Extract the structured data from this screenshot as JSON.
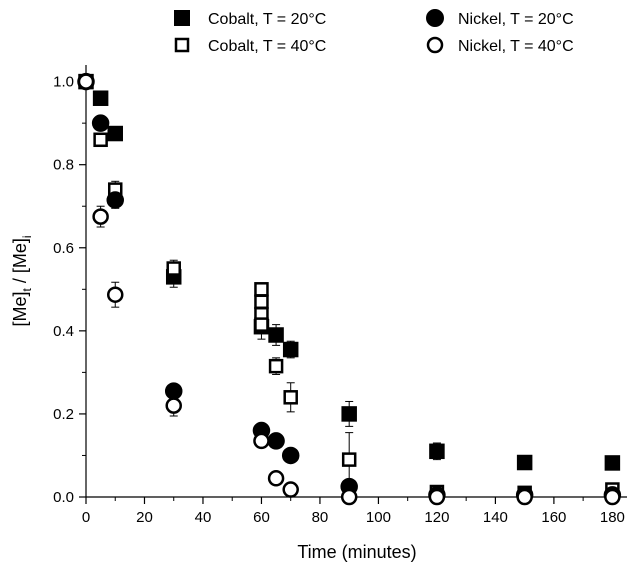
{
  "chart_data": {
    "type": "scatter",
    "title": "",
    "xlabel": "Time (minutes)",
    "ylabel": {
      "main": "[Me]",
      "sub_t": "t",
      "sep": " / [Me]",
      "sub_i": "i"
    },
    "xlim": [
      0,
      185
    ],
    "ylim": [
      0,
      1.04
    ],
    "x_ticks": [
      0,
      20,
      40,
      60,
      80,
      100,
      120,
      140,
      160,
      180
    ],
    "x_tick_labels": [
      "0",
      "20",
      "40",
      "60",
      "80",
      "100",
      "120",
      "140",
      "160",
      "180"
    ],
    "y_ticks": [
      0.0,
      0.2,
      0.4,
      0.6,
      0.8,
      1.0
    ],
    "y_tick_labels": [
      "0.0",
      "0.2",
      "0.4",
      "0.6",
      "0.8",
      "1.0"
    ],
    "legend_position": "top",
    "grid": false,
    "series": [
      {
        "name": "Cobalt, T = 20°C",
        "marker": "square",
        "filled": true,
        "points": [
          {
            "x": 0,
            "y": 1.0
          },
          {
            "x": 5,
            "y": 0.96
          },
          {
            "x": 10,
            "y": 0.875
          },
          {
            "x": 30,
            "y": 0.53,
            "err": 0.025
          },
          {
            "x": 60,
            "y": 0.41,
            "err": 0.03
          },
          {
            "x": 65,
            "y": 0.39,
            "err": 0.025
          },
          {
            "x": 70,
            "y": 0.355,
            "err": 0.02
          },
          {
            "x": 90,
            "y": 0.2,
            "err": 0.03
          },
          {
            "x": 120,
            "y": 0.11,
            "err": 0.02
          },
          {
            "x": 150,
            "y": 0.083
          },
          {
            "x": 180,
            "y": 0.082
          }
        ]
      },
      {
        "name": "Cobalt, T = 40°C",
        "marker": "square",
        "filled": false,
        "points": [
          {
            "x": 0,
            "y": 1.0
          },
          {
            "x": 5,
            "y": 0.86
          },
          {
            "x": 10,
            "y": 0.74,
            "err": 0.02
          },
          {
            "x": 30,
            "y": 0.55,
            "err": 0.02
          },
          {
            "x": 60,
            "y": 0.5
          },
          {
            "x": 60,
            "y": 0.47
          },
          {
            "x": 60,
            "y": 0.44
          },
          {
            "x": 60,
            "y": 0.415
          },
          {
            "x": 65,
            "y": 0.315,
            "err": 0.02
          },
          {
            "x": 70,
            "y": 0.24,
            "err": 0.035
          },
          {
            "x": 90,
            "y": 0.09,
            "err": 0.065
          },
          {
            "x": 120,
            "y": 0.012
          },
          {
            "x": 150,
            "y": 0.01
          },
          {
            "x": 180,
            "y": 0.018
          }
        ]
      },
      {
        "name": "Nickel, T = 20°C",
        "marker": "circle",
        "filled": true,
        "points": [
          {
            "x": 0,
            "y": 1.0
          },
          {
            "x": 5,
            "y": 0.9
          },
          {
            "x": 10,
            "y": 0.715,
            "err": 0.02
          },
          {
            "x": 30,
            "y": 0.255
          },
          {
            "x": 60,
            "y": 0.16
          },
          {
            "x": 65,
            "y": 0.135
          },
          {
            "x": 70,
            "y": 0.1
          },
          {
            "x": 90,
            "y": 0.025
          },
          {
            "x": 120,
            "y": 0.005
          },
          {
            "x": 150,
            "y": 0.005
          },
          {
            "x": 180,
            "y": 0.005
          }
        ]
      },
      {
        "name": "Nickel, T = 40°C",
        "marker": "circle",
        "filled": false,
        "points": [
          {
            "x": 0,
            "y": 1.0
          },
          {
            "x": 5,
            "y": 0.675,
            "err": 0.025
          },
          {
            "x": 10,
            "y": 0.487,
            "err": 0.03
          },
          {
            "x": 30,
            "y": 0.22,
            "err": 0.025
          },
          {
            "x": 60,
            "y": 0.135
          },
          {
            "x": 65,
            "y": 0.045
          },
          {
            "x": 70,
            "y": 0.018
          },
          {
            "x": 90,
            "y": 0.0
          },
          {
            "x": 120,
            "y": 0.0
          },
          {
            "x": 150,
            "y": 0.0
          },
          {
            "x": 180,
            "y": 0.0
          }
        ]
      }
    ]
  }
}
